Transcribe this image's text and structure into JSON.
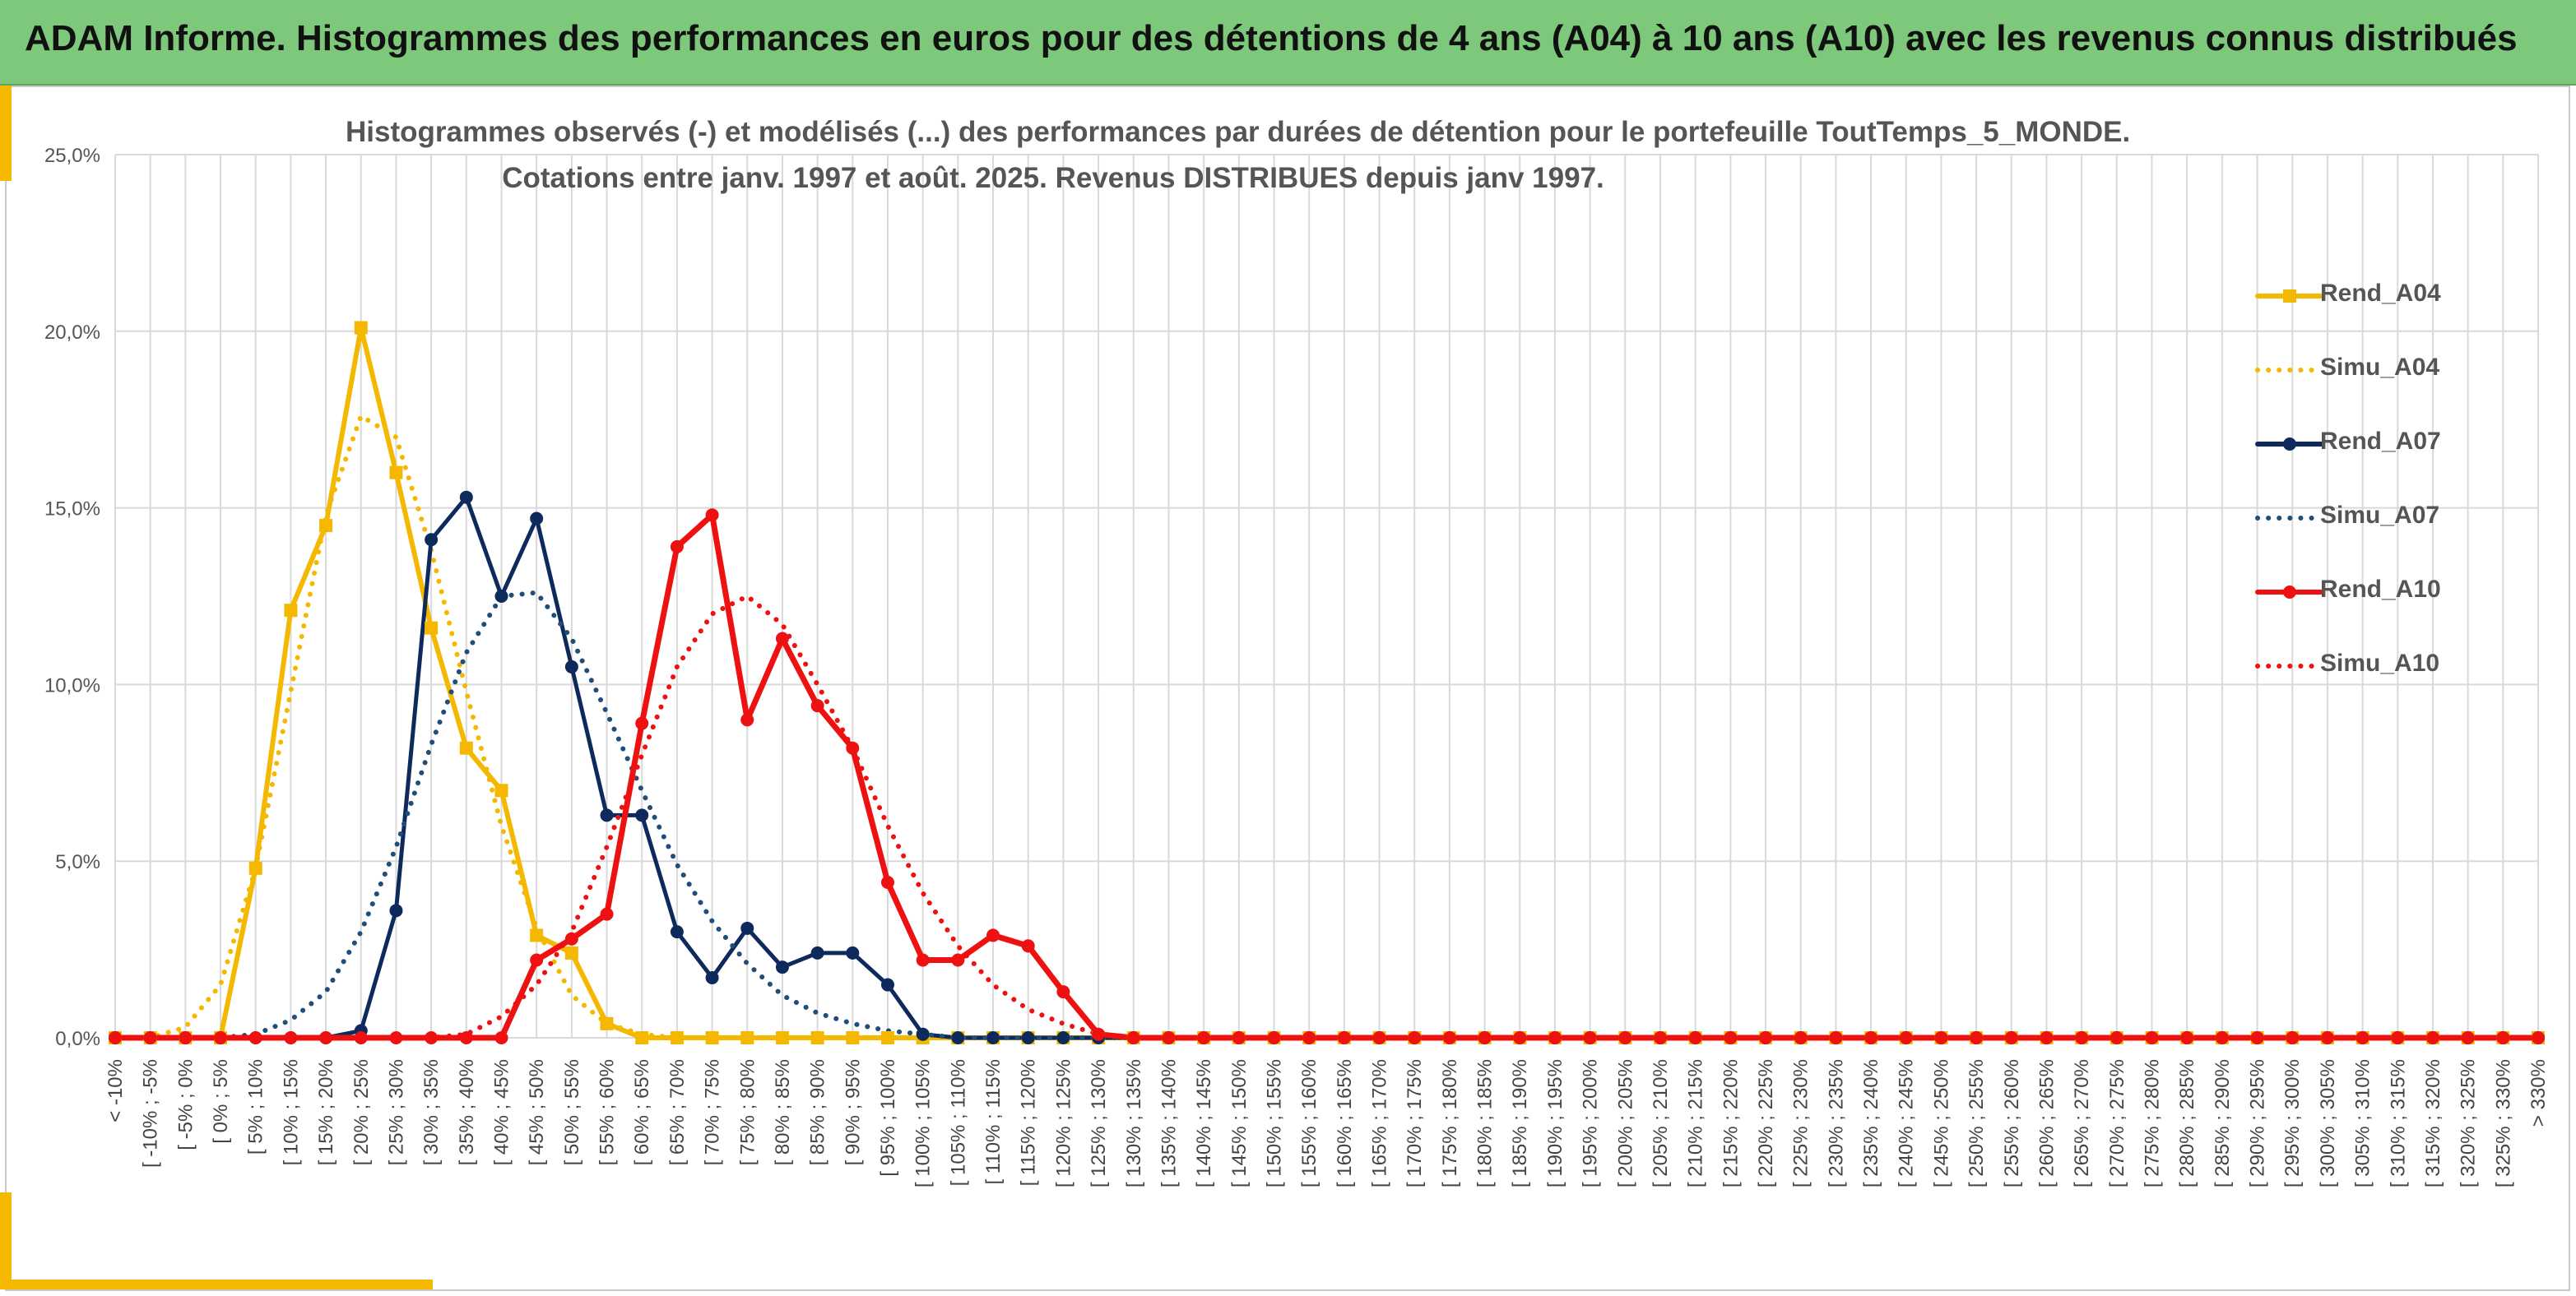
{
  "banner": {
    "title": "ADAM Informe. Histogrammes des performances en euros pour des détentions de 4 ans (A04) à 10 ans (A10) avec les revenus connus distribués"
  },
  "colors": {
    "banner": "#7dc87a",
    "A04": "#f5b800",
    "A07": "#0e2a5c",
    "A10": "#ee1111",
    "grid": "#d9d9d9",
    "accent": "#f5b800"
  },
  "chart_data": {
    "type": "line",
    "title": "Histogrammes observés (-) et modélisés (...) des performances par durées de détention pour le portefeuille ToutTemps_5_MONDE.",
    "subtitle": "Cotations entre janv. 1997 et août. 2025. Revenus DISTRIBUES depuis janv 1997.",
    "xlabel": "",
    "ylabel": "",
    "ylim": [
      0,
      25
    ],
    "y_ticks": [
      "0,0%",
      "5,0%",
      "10,0%",
      "15,0%",
      "20,0%",
      "25,0%"
    ],
    "grid": true,
    "legend_position": "right",
    "categories": [
      "< -10%",
      "[ -10% ; -5%",
      "[ -5% ; 0%",
      "[ 0% ; 5%",
      "[ 5% ; 10%",
      "[ 10% ; 15%",
      "[ 15% ; 20%",
      "[ 20% ; 25%",
      "[ 25% ; 30%",
      "[ 30% ; 35%",
      "[ 35% ; 40%",
      "[ 40% ; 45%",
      "[ 45% ; 50%",
      "[ 50% ; 55%",
      "[ 55% ; 60%",
      "[ 60% ; 65%",
      "[ 65% ; 70%",
      "[ 70% ; 75%",
      "[ 75% ; 80%",
      "[ 80% ; 85%",
      "[ 85% ; 90%",
      "[ 90% ; 95%",
      "[ 95% ; 100%",
      "[ 100% ; 105%",
      "[ 105% ; 110%",
      "[ 110% ; 115%",
      "[ 115% ; 120%",
      "[ 120% ; 125%",
      "[ 125% ; 130%",
      "[ 130% ; 135%",
      "[ 135% ; 140%",
      "[ 140% ; 145%",
      "[ 145% ; 150%",
      "[ 150% ; 155%",
      "[ 155% ; 160%",
      "[ 160% ; 165%",
      "[ 165% ; 170%",
      "[ 170% ; 175%",
      "[ 175% ; 180%",
      "[ 180% ; 185%",
      "[ 185% ; 190%",
      "[ 190% ; 195%",
      "[ 195% ; 200%",
      "[ 200% ; 205%",
      "[ 205% ; 210%",
      "[ 210% ; 215%",
      "[ 215% ; 220%",
      "[ 220% ; 225%",
      "[ 225% ; 230%",
      "[ 230% ; 235%",
      "[ 235% ; 240%",
      "[ 240% ; 245%",
      "[ 245% ; 250%",
      "[ 250% ; 255%",
      "[ 255% ; 260%",
      "[ 260% ; 265%",
      "[ 265% ; 270%",
      "[ 270% ; 275%",
      "[ 275% ; 280%",
      "[ 280% ; 285%",
      "[ 285% ; 290%",
      "[ 290% ; 295%",
      "[ 295% ; 300%",
      "[ 300% ; 305%",
      "[ 305% ; 310%",
      "[ 310% ; 315%",
      "[ 315% ; 320%",
      "[ 320% ; 325%",
      "[ 325% ; 330%",
      "> 330%"
    ],
    "series": [
      {
        "name": "Rend_A04",
        "style": "solid",
        "marker": "square",
        "color": "#f5b800",
        "values": [
          0,
          0,
          0,
          0,
          4.8,
          12.1,
          14.5,
          20.1,
          16.0,
          11.6,
          8.2,
          7.0,
          2.9,
          2.4,
          0.4,
          0,
          0,
          0,
          0,
          0,
          0,
          0,
          0,
          0,
          0,
          0,
          0,
          0,
          0,
          0,
          0,
          0,
          0,
          0,
          0,
          0,
          0,
          0,
          0,
          0,
          0,
          0,
          0,
          0,
          0,
          0,
          0,
          0,
          0,
          0,
          0,
          0,
          0,
          0,
          0,
          0,
          0,
          0,
          0,
          0,
          0,
          0,
          0,
          0,
          0,
          0,
          0,
          0,
          0,
          0
        ]
      },
      {
        "name": "Simu_A04",
        "style": "dotted",
        "color": "#f5b800",
        "values": [
          0,
          0,
          0.3,
          1.5,
          4.8,
          9.8,
          14.8,
          17.6,
          17.0,
          13.8,
          9.8,
          6.0,
          3.1,
          1.2,
          0.4,
          0.1,
          0,
          0,
          0,
          0,
          0,
          0,
          0,
          0,
          0,
          0,
          0,
          0,
          0,
          0,
          0,
          0,
          0,
          0,
          0,
          0,
          0,
          0,
          0,
          0,
          0,
          0,
          0,
          0,
          0,
          0,
          0,
          0,
          0,
          0,
          0,
          0,
          0,
          0,
          0,
          0,
          0,
          0,
          0,
          0,
          0,
          0,
          0,
          0,
          0,
          0,
          0,
          0,
          0,
          0
        ]
      },
      {
        "name": "Rend_A07",
        "style": "solid",
        "marker": "circle",
        "color": "#0e2a5c",
        "values": [
          0,
          0,
          0,
          0,
          0,
          0,
          0,
          0.2,
          3.6,
          14.1,
          15.3,
          12.5,
          14.7,
          10.5,
          6.3,
          6.3,
          3.0,
          1.7,
          3.1,
          2.0,
          2.4,
          2.4,
          1.5,
          0.1,
          0,
          0,
          0,
          0,
          0,
          0,
          0,
          0,
          0,
          0,
          0,
          0,
          0,
          0,
          0,
          0,
          0,
          0,
          0,
          0,
          0,
          0,
          0,
          0,
          0,
          0,
          0,
          0,
          0,
          0,
          0,
          0,
          0,
          0,
          0,
          0,
          0,
          0,
          0,
          0,
          0,
          0,
          0,
          0,
          0,
          0
        ]
      },
      {
        "name": "Simu_A07",
        "style": "dotted",
        "color": "#1f4e79",
        "values": [
          0,
          0,
          0,
          0,
          0.1,
          0.5,
          1.3,
          3.0,
          5.4,
          8.3,
          10.9,
          12.5,
          12.6,
          11.3,
          9.2,
          7.0,
          4.9,
          3.3,
          2.1,
          1.2,
          0.7,
          0.4,
          0.2,
          0.1,
          0,
          0,
          0,
          0,
          0,
          0,
          0,
          0,
          0,
          0,
          0,
          0,
          0,
          0,
          0,
          0,
          0,
          0,
          0,
          0,
          0,
          0,
          0,
          0,
          0,
          0,
          0,
          0,
          0,
          0,
          0,
          0,
          0,
          0,
          0,
          0,
          0,
          0,
          0,
          0,
          0,
          0,
          0,
          0,
          0,
          0
        ]
      },
      {
        "name": "Rend_A10",
        "style": "solid",
        "marker": "circle",
        "color": "#ee1111",
        "values": [
          0,
          0,
          0,
          0,
          0,
          0,
          0,
          0,
          0,
          0,
          0,
          0,
          2.2,
          2.8,
          3.5,
          8.9,
          13.9,
          14.8,
          9.0,
          11.3,
          9.4,
          8.2,
          4.4,
          2.2,
          2.2,
          2.9,
          2.6,
          1.3,
          0.1,
          0,
          0,
          0,
          0,
          0,
          0,
          0,
          0,
          0,
          0,
          0,
          0,
          0,
          0,
          0,
          0,
          0,
          0,
          0,
          0,
          0,
          0,
          0,
          0,
          0,
          0,
          0,
          0,
          0,
          0,
          0,
          0,
          0,
          0,
          0,
          0,
          0,
          0,
          0,
          0,
          0
        ]
      },
      {
        "name": "Simu_A10",
        "style": "dotted",
        "color": "#ee1111",
        "values": [
          0,
          0,
          0,
          0,
          0,
          0,
          0,
          0,
          0,
          0,
          0.1,
          0.6,
          1.5,
          3.0,
          5.4,
          8.0,
          10.5,
          12.0,
          12.5,
          11.7,
          10.0,
          8.2,
          6.0,
          4.1,
          2.6,
          1.5,
          0.8,
          0.4,
          0.1,
          0,
          0,
          0,
          0,
          0,
          0,
          0,
          0,
          0,
          0,
          0,
          0,
          0,
          0,
          0,
          0,
          0,
          0,
          0,
          0,
          0,
          0,
          0,
          0,
          0,
          0,
          0,
          0,
          0,
          0,
          0,
          0,
          0,
          0,
          0,
          0,
          0,
          0,
          0,
          0,
          0
        ]
      }
    ]
  }
}
